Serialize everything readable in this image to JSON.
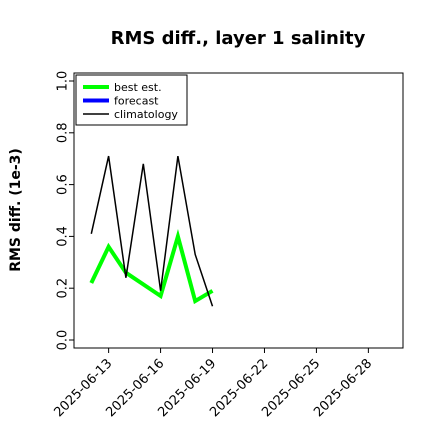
{
  "chart_data": {
    "type": "line",
    "title": "RMS diff., layer 1 salinity",
    "xlabel": "",
    "ylabel": "RMS diff. (1e-3)",
    "ylim": [
      0.0,
      1.0
    ],
    "yticks": [
      "0.0",
      "0.2",
      "0.4",
      "0.6",
      "0.8",
      "1.0"
    ],
    "xlim": [
      "2025-06-11",
      "2025-06-30"
    ],
    "xticks": [
      "2025-06-13",
      "2025-06-16",
      "2025-06-19",
      "2025-06-22",
      "2025-06-25",
      "2025-06-28"
    ],
    "highlight_tick": "2025-06-19",
    "highlight_color": "#228B22",
    "grid": false,
    "legend_position": "top-left",
    "series": [
      {
        "name": "best est.",
        "color": "#00ff00",
        "x": [
          "2025-06-12",
          "2025-06-13",
          "2025-06-14",
          "2025-06-16",
          "2025-06-17",
          "2025-06-18",
          "2025-06-19"
        ],
        "values": [
          0.22,
          0.36,
          0.26,
          0.17,
          0.4,
          0.15,
          0.19
        ]
      },
      {
        "name": "forecast",
        "color": "#0000ff",
        "x": [],
        "values": []
      },
      {
        "name": "climatology",
        "color": "#000000",
        "x": [
          "2025-06-12",
          "2025-06-13",
          "2025-06-14",
          "2025-06-15",
          "2025-06-16",
          "2025-06-17",
          "2025-06-18",
          "2025-06-19"
        ],
        "values": [
          0.41,
          0.71,
          0.24,
          0.68,
          0.19,
          0.71,
          0.33,
          0.13
        ]
      }
    ]
  }
}
